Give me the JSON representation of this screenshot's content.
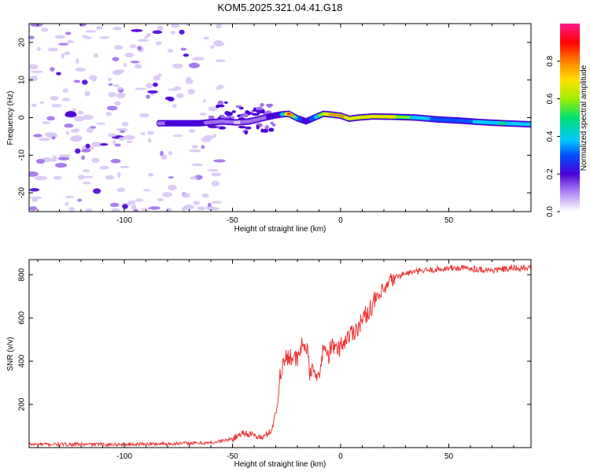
{
  "title": "KOM5.2025.321.04.41.G18",
  "colors": {
    "snr_line": "#ee3333",
    "spectrogram_colormap": [
      "#ffffff",
      "#d8c6f5",
      "#a070f0",
      "#4b00d8",
      "#0050ff",
      "#00c8ff",
      "#00e070",
      "#a0f000",
      "#ffe000",
      "#ff8000",
      "#ff0000",
      "#ff1a8c"
    ]
  },
  "chart_data": [
    {
      "type": "heatmap",
      "name": "spectrogram",
      "xlabel": "Height of straight line (km)",
      "ylabel": "Frequency (Hz)",
      "xlim": [
        -144,
        88
      ],
      "ylim": [
        -25,
        25
      ],
      "xticks": [
        -100,
        -50,
        0,
        50
      ],
      "xtick_labels": [
        "-100",
        "-50",
        "0",
        "50"
      ],
      "yticks": [
        -20,
        -10,
        0,
        10,
        20
      ],
      "ytick_labels": [
        "-20",
        "-10",
        "0",
        "10",
        "20"
      ],
      "colorbar": {
        "label": "Normalized spectral amplitude",
        "range": [
          0,
          1
        ],
        "ticks": [
          0.0,
          0.2,
          0.4,
          0.6,
          0.8
        ],
        "tick_labels": [
          "0.0",
          "0.2",
          "0.4",
          "0.6",
          "0.8"
        ]
      },
      "ridge": {
        "x": [
          -84,
          -75,
          -65,
          -55,
          -48,
          -42,
          -35,
          -28,
          -24,
          -20,
          -16,
          -12,
          -8,
          -4,
          0,
          4,
          8,
          15,
          25,
          35,
          45,
          55,
          65,
          75,
          88
        ],
        "freq": [
          -1.5,
          -1.5,
          -1.5,
          -1.0,
          -1.3,
          -1.0,
          0.0,
          0.8,
          1.0,
          -0.2,
          -1.0,
          0.0,
          1.0,
          0.8,
          0.5,
          -0.3,
          0.0,
          0.3,
          0.2,
          0.0,
          -0.5,
          -0.8,
          -1.2,
          -1.5,
          -1.8
        ],
        "amplitude": [
          0.25,
          0.3,
          0.28,
          0.22,
          0.15,
          0.18,
          0.25,
          0.35,
          0.9,
          0.5,
          0.3,
          0.45,
          0.7,
          0.8,
          0.8,
          0.75,
          0.7,
          0.75,
          0.7,
          0.55,
          0.45,
          0.45,
          0.5,
          0.6,
          0.5
        ]
      },
      "noise_region_xlim": [
        -144,
        -55
      ]
    },
    {
      "type": "line",
      "name": "snr",
      "xlabel": "Height of straight line (km)",
      "ylabel": "SNR (v/v)",
      "xlim": [
        -144,
        88
      ],
      "ylim": [
        0,
        870
      ],
      "xticks": [
        -100,
        -50,
        0,
        50
      ],
      "xtick_labels": [
        "-100",
        "-50",
        "0",
        "50"
      ],
      "yticks": [
        200,
        400,
        600,
        800
      ],
      "ytick_labels": [
        "200",
        "400",
        "600",
        "800"
      ],
      "series": [
        {
          "name": "SNR",
          "x": [
            -144,
            -120,
            -100,
            -80,
            -60,
            -50,
            -45,
            -40,
            -36,
            -32,
            -29,
            -28,
            -26,
            -24,
            -22,
            -20,
            -18,
            -16,
            -14,
            -12,
            -10,
            -8,
            -6,
            -4,
            -2,
            0,
            4,
            8,
            12,
            16,
            20,
            24,
            28,
            32,
            40,
            50,
            60,
            70,
            80,
            88
          ],
          "y": [
            15,
            15,
            15,
            18,
            22,
            40,
            70,
            55,
            45,
            80,
            200,
            350,
            400,
            430,
            420,
            400,
            470,
            480,
            330,
            380,
            300,
            480,
            420,
            470,
            450,
            470,
            520,
            560,
            620,
            680,
            720,
            780,
            800,
            810,
            820,
            830,
            830,
            820,
            830,
            830
          ]
        }
      ]
    }
  ]
}
